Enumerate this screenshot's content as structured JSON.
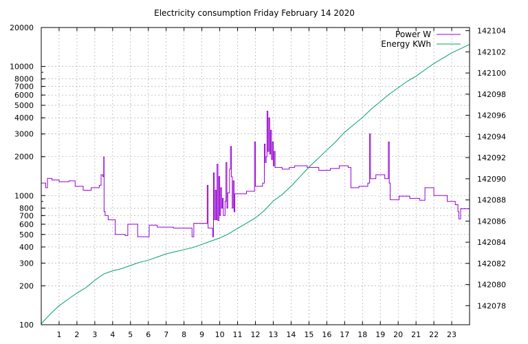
{
  "chart_data": {
    "type": "line",
    "title": "Electricity consumption Friday February 14 2020",
    "x_range": [
      0,
      24
    ],
    "x_ticks": [
      "1",
      "2",
      "3",
      "4",
      "5",
      "6",
      "7",
      "8",
      "9",
      "10",
      "11",
      "12",
      "13",
      "14",
      "15",
      "16",
      "17",
      "18",
      "19",
      "20",
      "21",
      "22",
      "23"
    ],
    "y_left": {
      "scale": "log",
      "range": [
        100,
        20000
      ],
      "ticks": [
        "20000",
        "10000",
        "8000",
        "7000",
        "6000",
        "5000",
        "4000",
        "3000",
        "2000",
        "1000",
        "800",
        "700",
        "600",
        "500",
        "400",
        "300",
        "200",
        "100"
      ]
    },
    "y_right": {
      "scale": "linear",
      "range": [
        142076.2,
        142104.3
      ],
      "ticks": [
        "142104",
        "142102",
        "142100",
        "142098",
        "142096",
        "142094",
        "142092",
        "142090",
        "142088",
        "142086",
        "142084",
        "142082",
        "142080",
        "142078"
      ]
    },
    "grid": true,
    "legend_position": "top-right",
    "colors": {
      "power": "#9400d3",
      "energy": "#009e73",
      "grid": "#a0a0a0"
    },
    "series": [
      {
        "name": "Power W",
        "axis": "left",
        "step": true,
        "points": [
          [
            0,
            1250
          ],
          [
            0.25,
            1150
          ],
          [
            0.35,
            1360
          ],
          [
            0.6,
            1320
          ],
          [
            1,
            1280
          ],
          [
            1.55,
            1300
          ],
          [
            1.9,
            1180
          ],
          [
            2.35,
            1100
          ],
          [
            2.8,
            1150
          ],
          [
            3.25,
            1200
          ],
          [
            3.35,
            1450
          ],
          [
            3.45,
            1400
          ],
          [
            3.5,
            2000
          ],
          [
            3.52,
            750
          ],
          [
            3.58,
            700
          ],
          [
            3.75,
            650
          ],
          [
            4.15,
            500
          ],
          [
            4.7,
            490
          ],
          [
            4.85,
            600
          ],
          [
            5.4,
            480
          ],
          [
            5.5,
            480
          ],
          [
            6.05,
            590
          ],
          [
            6.5,
            570
          ],
          [
            6.9,
            570
          ],
          [
            7.4,
            560
          ],
          [
            7.8,
            560
          ],
          [
            8.45,
            480
          ],
          [
            8.55,
            610
          ],
          [
            9.1,
            610
          ],
          [
            9.3,
            1200
          ],
          [
            9.35,
            560
          ],
          [
            9.6,
            480
          ],
          [
            9.65,
            1500
          ],
          [
            9.7,
            650
          ],
          [
            9.75,
            1100
          ],
          [
            9.8,
            650
          ],
          [
            9.85,
            1750
          ],
          [
            9.9,
            640
          ],
          [
            9.95,
            1400
          ],
          [
            10.0,
            700
          ],
          [
            10.05,
            1150
          ],
          [
            10.1,
            800
          ],
          [
            10.15,
            950
          ],
          [
            10.2,
            700
          ],
          [
            10.3,
            900
          ],
          [
            10.35,
            1800
          ],
          [
            10.4,
            800
          ],
          [
            10.45,
            1050
          ],
          [
            10.55,
            1600
          ],
          [
            10.6,
            2400
          ],
          [
            10.65,
            1400
          ],
          [
            10.7,
            800
          ],
          [
            10.75,
            1300
          ],
          [
            10.8,
            750
          ],
          [
            10.85,
            1030
          ],
          [
            11.0,
            1030
          ],
          [
            11.45,
            1030
          ],
          [
            11.5,
            1080
          ],
          [
            11.9,
            1080
          ],
          [
            11.95,
            2600
          ],
          [
            12.0,
            1180
          ],
          [
            12.4,
            1250
          ],
          [
            12.5,
            2500
          ],
          [
            12.55,
            1800
          ],
          [
            12.6,
            2000
          ],
          [
            12.65,
            4500
          ],
          [
            12.7,
            2200
          ],
          [
            12.75,
            4000
          ],
          [
            12.8,
            2100
          ],
          [
            12.85,
            3200
          ],
          [
            12.9,
            1900
          ],
          [
            12.95,
            2600
          ],
          [
            13.0,
            1700
          ],
          [
            13.05,
            2200
          ],
          [
            13.1,
            1650
          ],
          [
            13.5,
            1600
          ],
          [
            13.9,
            1650
          ],
          [
            14.2,
            1700
          ],
          [
            14.9,
            1650
          ],
          [
            15.3,
            1650
          ],
          [
            15.55,
            1570
          ],
          [
            16.2,
            1620
          ],
          [
            16.7,
            1700
          ],
          [
            17.2,
            1650
          ],
          [
            17.35,
            1150
          ],
          [
            17.8,
            1180
          ],
          [
            18.3,
            1250
          ],
          [
            18.4,
            3000
          ],
          [
            18.45,
            1350
          ],
          [
            18.6,
            1350
          ],
          [
            18.75,
            1450
          ],
          [
            19.25,
            1350
          ],
          [
            19.45,
            2600
          ],
          [
            19.5,
            1250
          ],
          [
            19.55,
            930
          ],
          [
            19.95,
            930
          ],
          [
            20.05,
            990
          ],
          [
            20.65,
            950
          ],
          [
            21.2,
            920
          ],
          [
            21.5,
            1150
          ],
          [
            22.0,
            1000
          ],
          [
            22.5,
            1000
          ],
          [
            22.75,
            900
          ],
          [
            23.2,
            850
          ],
          [
            23.35,
            750
          ],
          [
            23.4,
            660
          ],
          [
            23.5,
            790
          ],
          [
            24,
            790
          ]
        ]
      },
      {
        "name": "Energy KWh",
        "axis": "right",
        "step": false,
        "points": [
          [
            0,
            142076.3
          ],
          [
            0.5,
            142077.2
          ],
          [
            1,
            142078.0
          ],
          [
            1.5,
            142078.6
          ],
          [
            2,
            142079.2
          ],
          [
            2.5,
            142079.7
          ],
          [
            3,
            142080.4
          ],
          [
            3.5,
            142081.0
          ],
          [
            4,
            142081.3
          ],
          [
            4.5,
            142081.5
          ],
          [
            5,
            142081.8
          ],
          [
            5.5,
            142082.1
          ],
          [
            6,
            142082.3
          ],
          [
            6.5,
            142082.6
          ],
          [
            7,
            142082.9
          ],
          [
            7.5,
            142083.1
          ],
          [
            8,
            142083.3
          ],
          [
            8.5,
            142083.5
          ],
          [
            9,
            142083.8
          ],
          [
            9.5,
            142084.1
          ],
          [
            10,
            142084.4
          ],
          [
            10.5,
            142084.8
          ],
          [
            11,
            142085.3
          ],
          [
            11.5,
            142085.8
          ],
          [
            12,
            142086.3
          ],
          [
            12.5,
            142087.0
          ],
          [
            13,
            142087.9
          ],
          [
            13.5,
            142088.5
          ],
          [
            14,
            142089.3
          ],
          [
            14.5,
            142090.2
          ],
          [
            15,
            142091.1
          ],
          [
            15.5,
            142091.9
          ],
          [
            16,
            142092.7
          ],
          [
            16.5,
            142093.5
          ],
          [
            17,
            142094.4
          ],
          [
            17.5,
            142095.1
          ],
          [
            18,
            142095.8
          ],
          [
            18.5,
            142096.6
          ],
          [
            19,
            142097.3
          ],
          [
            19.5,
            142098.0
          ],
          [
            20,
            142098.6
          ],
          [
            20.5,
            142099.2
          ],
          [
            21,
            142099.7
          ],
          [
            21.5,
            142100.3
          ],
          [
            22,
            142100.9
          ],
          [
            22.5,
            142101.4
          ],
          [
            23,
            142101.9
          ],
          [
            23.5,
            142102.3
          ],
          [
            24,
            142102.7
          ]
        ]
      }
    ]
  }
}
